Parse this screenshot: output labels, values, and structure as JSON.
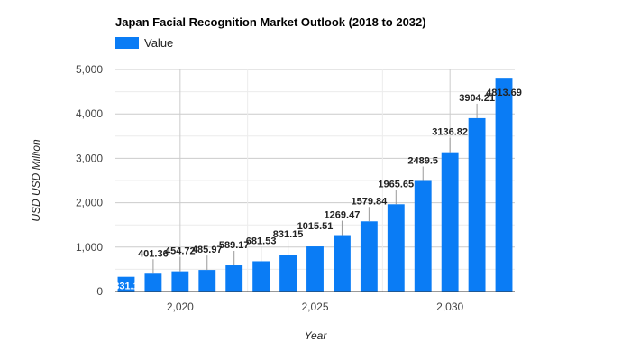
{
  "chart_data": {
    "type": "bar",
    "title": "Japan Facial Recognition Market Outlook (2018 to 2032)",
    "xlabel": "Year",
    "ylabel": "USD USD Million",
    "x_tick_labels": [
      "2,020",
      "2,025",
      "2,030"
    ],
    "x_tick_values": [
      2020,
      2025,
      2030
    ],
    "ylim": [
      0,
      5000
    ],
    "y_ticks": [
      0,
      1000,
      2000,
      3000,
      4000,
      5000
    ],
    "y_tick_labels": [
      "0",
      "1,000",
      "2,000",
      "3,000",
      "4,000",
      "5,000"
    ],
    "grid": true,
    "legend_position": "top-left",
    "series": [
      {
        "name": "Value",
        "color": "#0a7cf5",
        "x": [
          2018,
          2019,
          2020,
          2021,
          2022,
          2023,
          2024,
          2025,
          2026,
          2027,
          2028,
          2029,
          2030,
          2031,
          2032
        ],
        "values": [
          331.1,
          401.36,
          454.72,
          485.97,
          589.17,
          681.53,
          831.15,
          1015.51,
          1269.47,
          1579.84,
          1965.65,
          2489.5,
          3136.82,
          3904.21,
          4813.69
        ],
        "labels": [
          "331.1",
          "401.36",
          "454.72",
          "485.97",
          "589.17",
          "681.53",
          "831.15",
          "1015.51",
          "1269.47",
          "1579.84",
          "1965.65",
          "2489.5",
          "3136.82",
          "3904.21",
          "4813.69"
        ]
      }
    ]
  }
}
